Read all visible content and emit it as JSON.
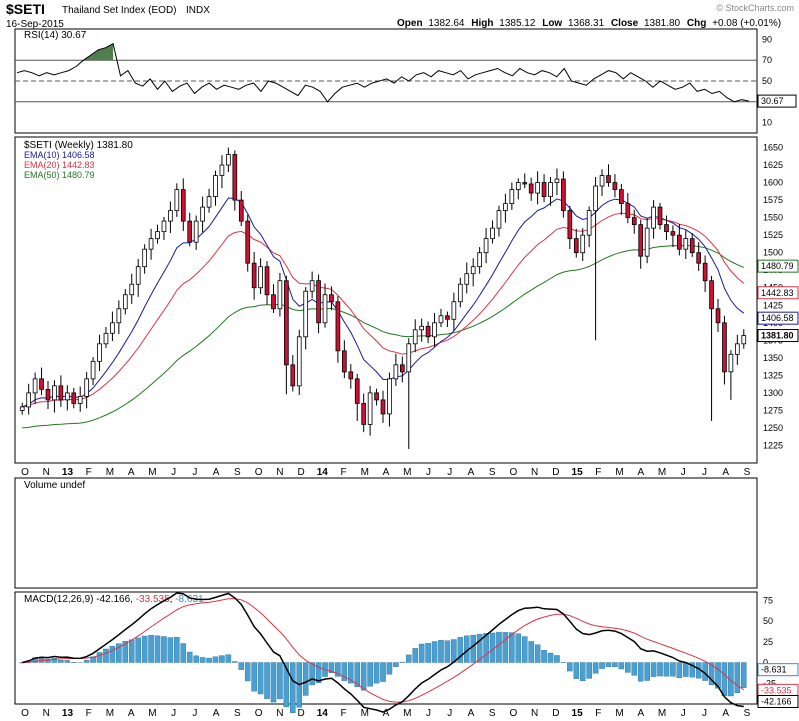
{
  "header": {
    "symbol": "$SETI",
    "name": "Thailand Set Index (EOD)",
    "exchange": "INDX",
    "date": "16-Sep-2015",
    "brand": "© StockCharts.com",
    "ohlc": {
      "open_label": "Open",
      "open": "1382.64",
      "high_label": "High",
      "high": "1385.12",
      "low_label": "Low",
      "low": "1368.31",
      "close_label": "Close",
      "close": "1381.80",
      "chg_label": "Chg",
      "chg": "+0.08 (+0.01%)"
    }
  },
  "colors": {
    "up_candle": "#ffffff",
    "down_candle": "#cc1133",
    "candle_outline": "#000000",
    "ema10": "#1a1a9c",
    "ema20": "#dd3344",
    "ema50": "#227722",
    "macd": "#000000",
    "signal": "#dd3344",
    "histogram": "#4aa0d0",
    "rsi": "#000000",
    "rsi_overbought_fill": "#4f7f4f",
    "rsi_oversold_fill": "#c04060"
  },
  "x_axis": {
    "labels": [
      "O",
      "N",
      "13",
      "F",
      "M",
      "A",
      "M",
      "J",
      "J",
      "A",
      "S",
      "O",
      "N",
      "D",
      "14",
      "F",
      "M",
      "A",
      "M",
      "J",
      "J",
      "A",
      "S",
      "O",
      "N",
      "D",
      "15",
      "F",
      "M",
      "A",
      "M",
      "J",
      "J",
      "A",
      "S"
    ],
    "bold_labels": [
      "13",
      "14",
      "15"
    ]
  },
  "chart_data": [
    {
      "type": "line",
      "panel": "rsi",
      "title": "RSI(14) 30.67",
      "ylim": [
        0,
        100
      ],
      "y_ticks": [
        90,
        70,
        50,
        30,
        10
      ],
      "ref_lines": [
        70,
        50,
        30
      ],
      "last_value_label": "30.67",
      "values": [
        58,
        60,
        58,
        55,
        58,
        56,
        58,
        60,
        64,
        70,
        75,
        80,
        82,
        86,
        55,
        60,
        48,
        45,
        52,
        42,
        50,
        40,
        45,
        48,
        38,
        44,
        48,
        42,
        46,
        44,
        42,
        46,
        48,
        40,
        50,
        48,
        44,
        40,
        36,
        46,
        44,
        40,
        30,
        38,
        44,
        46,
        48,
        44,
        48,
        50,
        52,
        48,
        54,
        50,
        56,
        58,
        54,
        60,
        58,
        56,
        60,
        52,
        56,
        58,
        60,
        62,
        58,
        55,
        62,
        58,
        56,
        60,
        58,
        54,
        62,
        50,
        48,
        46,
        52,
        56,
        60,
        58,
        52,
        58,
        54,
        50,
        44,
        50,
        46,
        42,
        44,
        48,
        40,
        42,
        38,
        40,
        34,
        30,
        32,
        30.67
      ]
    },
    {
      "type": "candlestick",
      "panel": "price",
      "title": "$SETI (Weekly) 1381.80",
      "legend": [
        {
          "name": "EMA(10)",
          "value": "1406.58"
        },
        {
          "name": "EMA(20)",
          "value": "1442.83"
        },
        {
          "name": "EMA(50)",
          "value": "1480.79"
        }
      ],
      "ylim": [
        1200,
        1665
      ],
      "y_ticks": [
        1650,
        1625,
        1600,
        1575,
        1550,
        1525,
        1500,
        1475,
        1450,
        1425,
        1400,
        1375,
        1350,
        1325,
        1300,
        1275,
        1250,
        1225
      ],
      "y_tick_labels": [
        "1650",
        "1625",
        "1600",
        "1575",
        "1550",
        "1525",
        "1500",
        "1475",
        "1450",
        "1425",
        "1400",
        "1375",
        "1350",
        "1325",
        "1300",
        "1275",
        "1250",
        "1225"
      ],
      "last_labels": [
        {
          "text": "1480.79",
          "value": 1480.79,
          "series": "ema50"
        },
        {
          "text": "1442.83",
          "value": 1442.83,
          "series": "ema20"
        },
        {
          "text": "1406.58",
          "value": 1406.58,
          "series": "ema10"
        },
        {
          "text": "1381.80",
          "value": 1381.8,
          "series": "close"
        }
      ],
      "closes": [
        1280,
        1300,
        1320,
        1305,
        1290,
        1310,
        1290,
        1300,
        1285,
        1295,
        1320,
        1345,
        1370,
        1385,
        1400,
        1420,
        1440,
        1455,
        1480,
        1505,
        1520,
        1530,
        1545,
        1560,
        1590,
        1545,
        1515,
        1545,
        1565,
        1580,
        1610,
        1625,
        1640,
        1575,
        1545,
        1485,
        1450,
        1480,
        1440,
        1420,
        1460,
        1340,
        1310,
        1380,
        1445,
        1460,
        1400,
        1440,
        1430,
        1360,
        1330,
        1320,
        1285,
        1255,
        1300,
        1290,
        1270,
        1320,
        1340,
        1330,
        1370,
        1390,
        1395,
        1380,
        1400,
        1410,
        1405,
        1430,
        1455,
        1470,
        1480,
        1500,
        1520,
        1535,
        1560,
        1570,
        1590,
        1600,
        1598,
        1585,
        1600,
        1580,
        1600,
        1605,
        1560,
        1520,
        1500,
        1525,
        1560,
        1595,
        1610,
        1600,
        1590,
        1570,
        1550,
        1540,
        1495,
        1535,
        1565,
        1540,
        1530,
        1525,
        1505,
        1520,
        1500,
        1485,
        1460,
        1420,
        1400,
        1330,
        1355,
        1370,
        1381.8
      ]
    },
    {
      "type": "bar",
      "panel": "volume",
      "title": "Volume undef",
      "values": []
    },
    {
      "type": "line",
      "panel": "macd",
      "title": "MACD(12,26,9) -42.166, -33.535, -8.631",
      "title_parts": {
        "label": "MACD(12,26,9)",
        "macd": "-42.166",
        "signal": "-33.535",
        "histogram": "-8.631"
      },
      "ylim": [
        -50,
        85
      ],
      "y_ticks": [
        75,
        50,
        25,
        0,
        -25
      ],
      "last_labels": [
        {
          "text": "-8.631",
          "value": -8.631,
          "series": "histogram"
        },
        {
          "text": "-33.535",
          "value": -33.535,
          "series": "signal"
        },
        {
          "text": "-42.166",
          "value": -42.166,
          "series": "macd"
        }
      ]
    }
  ]
}
